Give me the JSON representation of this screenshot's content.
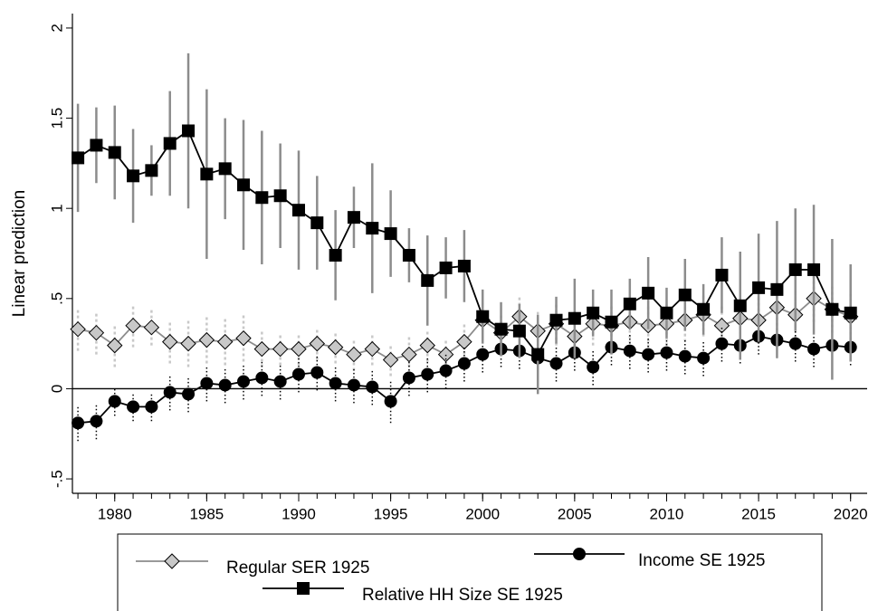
{
  "chart_data": {
    "type": "line",
    "y_label": "Linear prediction",
    "x": [
      1978,
      1979,
      1980,
      1981,
      1982,
      1983,
      1984,
      1985,
      1986,
      1987,
      1988,
      1989,
      1990,
      1991,
      1992,
      1993,
      1994,
      1995,
      1996,
      1997,
      1998,
      1999,
      2000,
      2001,
      2002,
      2003,
      2004,
      2005,
      2006,
      2007,
      2008,
      2009,
      2010,
      2011,
      2012,
      2013,
      2014,
      2015,
      2016,
      2017,
      2018,
      2019,
      2020
    ],
    "xlim": [
      1977.7,
      2020.9
    ],
    "xticks": [
      1980,
      1985,
      1990,
      1995,
      2000,
      2005,
      2010,
      2015,
      2020
    ],
    "xminorticks": [
      1978,
      1979,
      1980,
      1981,
      1982,
      1983,
      1984,
      1985,
      1986,
      1987,
      1988,
      1989,
      1990,
      1991,
      1992,
      1993,
      1994,
      1995,
      1996,
      1997,
      1998,
      1999,
      2000,
      2001,
      2002,
      2003,
      2004,
      2005,
      2006,
      2007,
      2008,
      2009,
      2010,
      2011,
      2012,
      2013,
      2014,
      2015,
      2016,
      2017,
      2018,
      2019,
      2020
    ],
    "ylim": [
      -0.58,
      2.08
    ],
    "yticks": [
      {
        "value": -0.5,
        "label": "-.5"
      },
      0,
      {
        "value": 0.5,
        "label": ".5"
      },
      1,
      1.5,
      2
    ],
    "hline": 0,
    "series": [
      {
        "name": "Regular SER 1925",
        "color": "#a0a0a0",
        "marker": "diamond",
        "error_style": "dashed",
        "values": [
          0.33,
          0.31,
          0.24,
          0.35,
          0.34,
          0.26,
          0.25,
          0.27,
          0.26,
          0.28,
          0.22,
          0.22,
          0.22,
          0.25,
          0.23,
          0.19,
          0.22,
          0.16,
          0.19,
          0.24,
          0.19,
          0.26,
          0.38,
          0.31,
          0.4,
          0.32,
          0.36,
          0.29,
          0.36,
          0.35,
          0.37,
          0.35,
          0.36,
          0.38,
          0.41,
          0.35,
          0.39,
          0.38,
          0.45,
          0.41,
          0.5,
          0.44,
          0.4
        ],
        "errors": [
          0.12,
          0.12,
          0.12,
          0.12,
          0.1,
          0.12,
          0.13,
          0.13,
          0.13,
          0.13,
          0.1,
          0.09,
          0.09,
          0.09,
          0.09,
          0.09,
          0.09,
          0.09,
          0.1,
          0.09,
          0.09,
          0.1,
          0.1,
          0.1,
          0.12,
          0.12,
          0.12,
          0.12,
          0.12,
          0.12,
          0.12,
          0.12,
          0.12,
          0.12,
          0.12,
          0.12,
          0.12,
          0.13,
          0.13,
          0.13,
          0.13,
          0.13,
          0.13
        ]
      },
      {
        "name": "Income SE 1925",
        "color": "#000000",
        "marker": "circle",
        "error_style": "dotted",
        "values": [
          -0.19,
          -0.18,
          -0.07,
          -0.1,
          -0.1,
          -0.02,
          -0.03,
          0.03,
          0.02,
          0.04,
          0.06,
          0.04,
          0.08,
          0.09,
          0.03,
          0.02,
          0.01,
          -0.07,
          0.06,
          0.08,
          0.1,
          0.14,
          0.19,
          0.22,
          0.21,
          0.17,
          0.14,
          0.2,
          0.12,
          0.23,
          0.21,
          0.19,
          0.2,
          0.18,
          0.17,
          0.25,
          0.24,
          0.29,
          0.27,
          0.25,
          0.22,
          0.24,
          0.23
        ],
        "errors": [
          0.1,
          0.1,
          0.08,
          0.08,
          0.08,
          0.1,
          0.1,
          0.1,
          0.1,
          0.1,
          0.1,
          0.1,
          0.1,
          0.1,
          0.1,
          0.1,
          0.1,
          0.12,
          0.1,
          0.1,
          0.1,
          0.1,
          0.1,
          0.1,
          0.1,
          0.1,
          0.1,
          0.1,
          0.1,
          0.1,
          0.1,
          0.1,
          0.1,
          0.1,
          0.1,
          0.1,
          0.1,
          0.1,
          0.1,
          0.1,
          0.1,
          0.1,
          0.1
        ]
      },
      {
        "name": "Relative HH Size SE 1925",
        "color": "#000000",
        "marker": "square",
        "error_style": "solid",
        "values": [
          1.28,
          1.35,
          1.31,
          1.18,
          1.21,
          1.36,
          1.43,
          1.19,
          1.22,
          1.13,
          1.06,
          1.07,
          0.99,
          0.92,
          0.74,
          0.95,
          0.89,
          0.86,
          0.74,
          0.6,
          0.67,
          0.68,
          0.4,
          0.33,
          0.32,
          0.19,
          0.38,
          0.39,
          0.42,
          0.37,
          0.47,
          0.53,
          0.42,
          0.52,
          0.44,
          0.63,
          0.46,
          0.56,
          0.55,
          0.66,
          0.66,
          0.44,
          0.42
        ],
        "errors": [
          0.3,
          0.21,
          0.26,
          0.26,
          0.14,
          0.29,
          0.43,
          0.47,
          0.28,
          0.36,
          0.37,
          0.29,
          0.33,
          0.26,
          0.25,
          0.17,
          0.36,
          0.24,
          0.15,
          0.25,
          0.17,
          0.2,
          0.15,
          0.15,
          0.15,
          0.22,
          0.13,
          0.22,
          0.13,
          0.18,
          0.14,
          0.2,
          0.14,
          0.2,
          0.14,
          0.21,
          0.3,
          0.3,
          0.38,
          0.34,
          0.36,
          0.39,
          0.27
        ]
      }
    ]
  }
}
